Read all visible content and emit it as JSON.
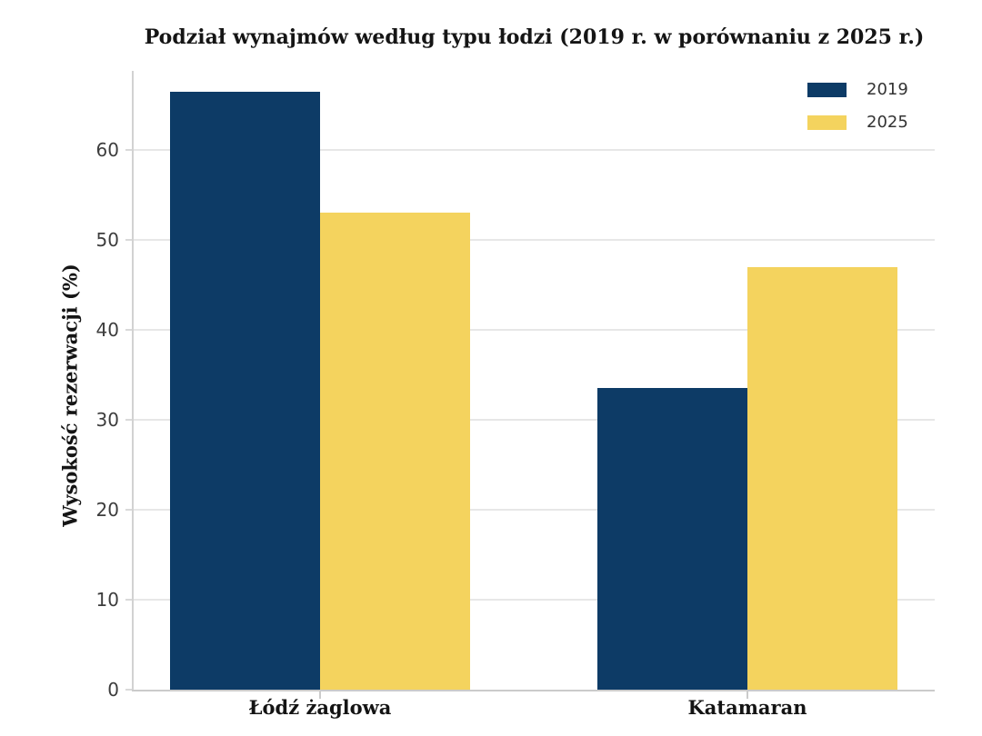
{
  "chart_data": {
    "type": "bar",
    "title": "Podział wynajmów według typu łodzi (2019 r. w porównaniu z 2025 r.)",
    "ylabel": "Wysokość rezerwacji (%)",
    "xlabel": "",
    "categories": [
      "Łódź żaglowa",
      "Katamaran"
    ],
    "series": [
      {
        "name": "2019",
        "color": "#0D3B66",
        "values": [
          66.5,
          33.5
        ]
      },
      {
        "name": "2025",
        "color": "#F4D35E",
        "values": [
          53,
          47
        ]
      }
    ],
    "yticks": [
      0,
      10,
      20,
      30,
      40,
      50,
      60
    ],
    "ylim": [
      0,
      69
    ],
    "grid": true,
    "legend_position": "top-right",
    "colors": {
      "background": "#ffffff",
      "grid": "#e7e7e7",
      "axis": "#cbcbcb",
      "tick_text": "#3d3d3d",
      "label_text": "#151515"
    }
  }
}
